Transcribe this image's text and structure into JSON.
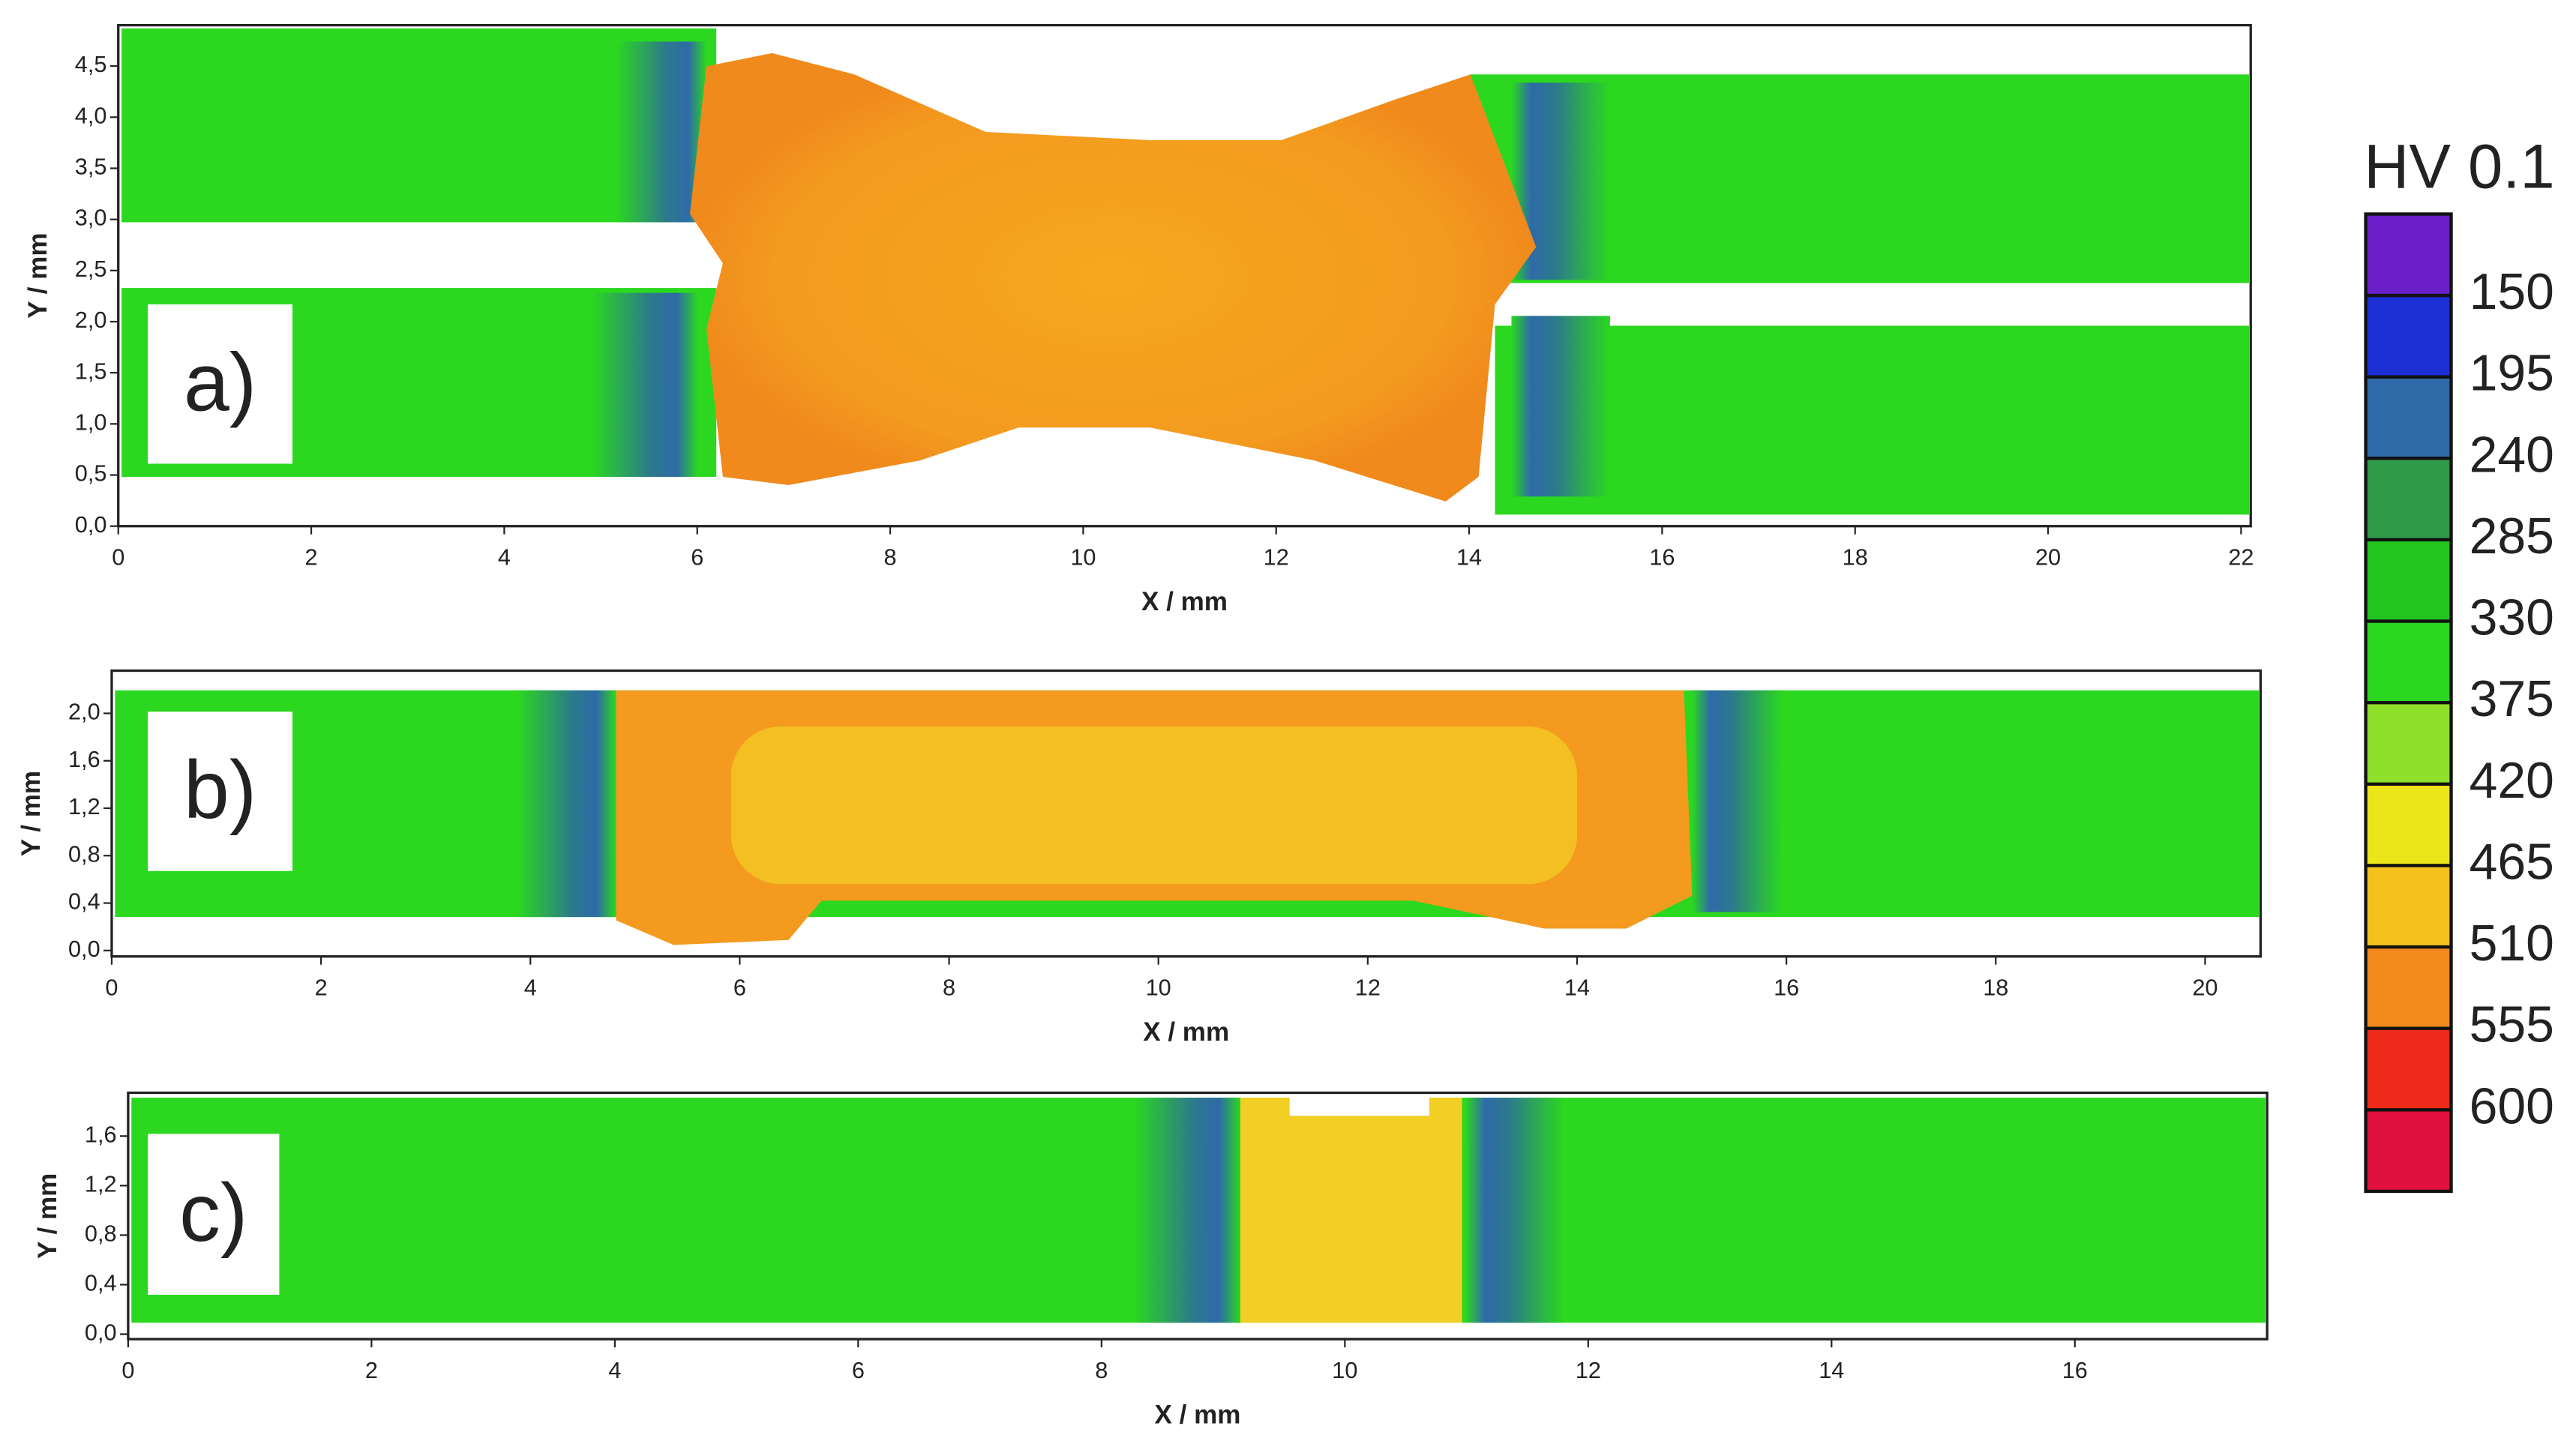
{
  "chart_data": [
    {
      "type": "heatmap",
      "panel_label": "a)",
      "xlabel": "X / mm",
      "ylabel": "Y / mm",
      "xlim": [
        0,
        22.1
      ],
      "ylim": [
        0,
        4.9
      ],
      "xticks": [
        0,
        2,
        4,
        6,
        8,
        10,
        12,
        14,
        16,
        18,
        20,
        22
      ],
      "yticks": [
        {
          "value": 0,
          "label": "0,0"
        },
        {
          "value": 0.5,
          "label": "0,5"
        },
        {
          "value": 1,
          "label": "1,0"
        },
        {
          "value": 1.5,
          "label": "1,5"
        },
        {
          "value": 2,
          "label": "2,0"
        },
        {
          "value": 2.5,
          "label": "2,5"
        },
        {
          "value": 3,
          "label": "3,0"
        },
        {
          "value": 3.5,
          "label": "3,5"
        },
        {
          "value": 4,
          "label": "4,0"
        },
        {
          "value": 4.5,
          "label": "4,5"
        }
      ]
    },
    {
      "type": "heatmap",
      "panel_label": "b)",
      "xlabel": "X / mm",
      "ylabel": "Y / mm",
      "xlim": [
        0,
        20.53
      ],
      "ylim": [
        -0.05,
        2.36
      ],
      "xticks": [
        0,
        2,
        4,
        6,
        8,
        10,
        12,
        14,
        16,
        18,
        20
      ],
      "yticks": [
        {
          "value": 0,
          "label": "0,0"
        },
        {
          "value": 0.4,
          "label": "0,4"
        },
        {
          "value": 0.8,
          "label": "0,8"
        },
        {
          "value": 1.2,
          "label": "1,2"
        },
        {
          "value": 1.6,
          "label": "1,6"
        },
        {
          "value": 2,
          "label": "2,0"
        }
      ]
    },
    {
      "type": "heatmap",
      "panel_label": "c)",
      "xlabel": "X / mm",
      "ylabel": "Y / mm",
      "xlim": [
        0,
        17.58
      ],
      "ylim": [
        -0.04,
        1.95
      ],
      "xticks": [
        0,
        2,
        4,
        6,
        8,
        10,
        12,
        14,
        16
      ],
      "yticks": [
        {
          "value": 0,
          "label": "0,0"
        },
        {
          "value": 0.4,
          "label": "0,4"
        },
        {
          "value": 0.8,
          "label": "0,8"
        },
        {
          "value": 1.2,
          "label": "1,2"
        },
        {
          "value": 1.6,
          "label": "1,6"
        }
      ]
    }
  ],
  "colorbar": {
    "title": "HV 0.1",
    "clim": [
      105,
      645
    ],
    "ticks": [
      150,
      195,
      240,
      285,
      330,
      375,
      420,
      465,
      510,
      555,
      600
    ],
    "colors": [
      "#6a1fc9",
      "#1f2fd6",
      "#2e6aa8",
      "#2f9a4a",
      "#22c41e",
      "#2bd81f",
      "#8ee02a",
      "#ece51a",
      "#f5c21d",
      "#f38a1c",
      "#ee2a1a",
      "#e0103c"
    ]
  }
}
